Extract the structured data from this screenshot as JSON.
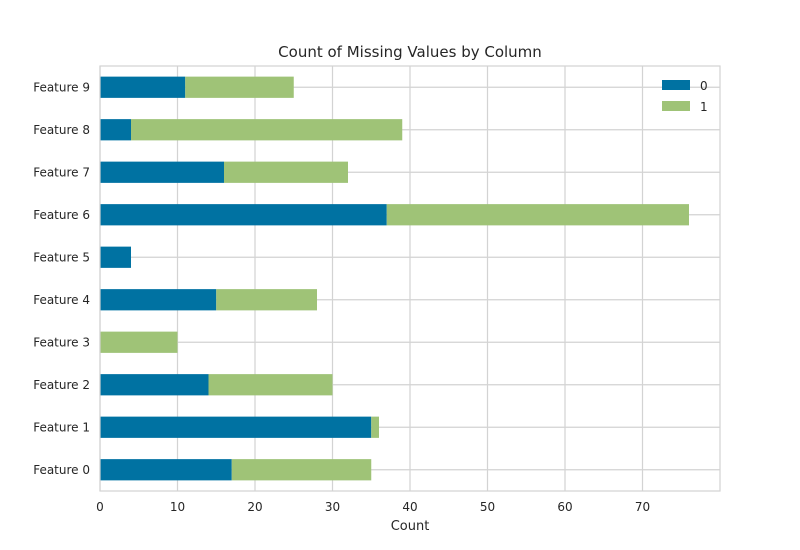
{
  "chart_data": {
    "type": "bar",
    "orientation": "horizontal",
    "stacked": true,
    "title": "Count of Missing Values by Column",
    "xlabel": "Count",
    "ylabel": "",
    "xlim": [
      0,
      80
    ],
    "xticks": [
      0,
      10,
      20,
      30,
      40,
      50,
      60,
      70
    ],
    "categories": [
      "Feature 0",
      "Feature 1",
      "Feature 2",
      "Feature 3",
      "Feature 4",
      "Feature 5",
      "Feature 6",
      "Feature 7",
      "Feature 8",
      "Feature 9"
    ],
    "series": [
      {
        "name": "0",
        "color": "#0072a2",
        "values": [
          17,
          35,
          14,
          0,
          15,
          4,
          37,
          16,
          4,
          11
        ]
      },
      {
        "name": "1",
        "color": "#9fc377",
        "values": [
          18,
          1,
          16,
          10,
          13,
          0,
          39,
          16,
          35,
          14
        ]
      }
    ],
    "grid": true,
    "legend_position": "top-right"
  }
}
